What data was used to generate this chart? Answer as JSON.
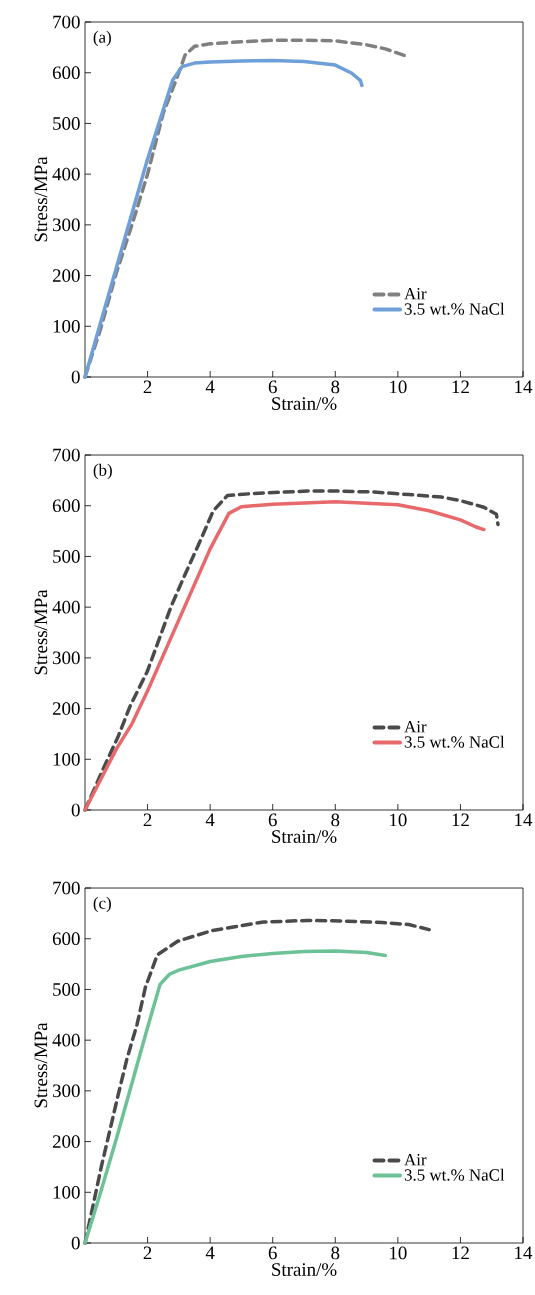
{
  "chart_data": [
    {
      "type": "line",
      "title": "(a)",
      "xlabel": "Strain/%",
      "ylabel": "Stress/MPa",
      "xlim": [
        0,
        14
      ],
      "ylim": [
        0,
        700
      ],
      "xticks": [
        2,
        4,
        6,
        8,
        10,
        12,
        14
      ],
      "yticks": [
        0,
        100,
        200,
        300,
        400,
        500,
        600,
        700
      ],
      "legend": "bottom right",
      "series": [
        {
          "name": "Air",
          "color": "#808080",
          "line_style": "dashed",
          "x": [
            0,
            0.5,
            1,
            1.5,
            2,
            2.5,
            3,
            3.2,
            3.5,
            4,
            5,
            6,
            7,
            8,
            9,
            9.6,
            10.3
          ],
          "values": [
            0,
            95,
            205,
            300,
            400,
            520,
            600,
            635,
            652,
            657,
            661,
            664,
            664,
            663,
            655,
            647,
            632
          ]
        },
        {
          "name": "3.5 wt.% NaCl",
          "color": "#6f9fd8",
          "line_style": "solid",
          "x": [
            0,
            1,
            2,
            2.8,
            3.1,
            3.5,
            4,
            5,
            6,
            7,
            8,
            8.5,
            8.8,
            8.85
          ],
          "values": [
            0,
            215,
            430,
            585,
            612,
            619,
            621,
            623,
            624,
            622,
            615,
            600,
            585,
            575
          ]
        }
      ]
    },
    {
      "type": "line",
      "title": "(b)",
      "xlabel": "Strain/%",
      "ylabel": "Stress/MPa",
      "xlim": [
        0,
        14
      ],
      "ylim": [
        0,
        700
      ],
      "xticks": [
        2,
        4,
        6,
        8,
        10,
        12,
        14
      ],
      "yticks": [
        0,
        100,
        200,
        300,
        400,
        500,
        600,
        700
      ],
      "legend": "bottom right",
      "series": [
        {
          "name": "Air",
          "color": "#4a4a4a",
          "line_style": "dashed",
          "x": [
            0,
            0.58,
            1.06,
            1.45,
            1.99,
            2.37,
            2.75,
            3.18,
            3.62,
            4.1,
            4.55,
            5.35,
            7.1,
            8,
            9.25,
            10.35,
            11.4,
            12,
            12.75,
            13.15,
            13.2
          ],
          "values": [
            0,
            81,
            145,
            206,
            273,
            337,
            401,
            462,
            522,
            590,
            620,
            624,
            629,
            629,
            627,
            622,
            617,
            610,
            597,
            583,
            563
          ]
        },
        {
          "name": "3.5 wt.% NaCl",
          "color": "#e8696b",
          "line_style": "solid",
          "x": [
            0,
            1,
            1.5,
            2,
            3,
            4,
            4.6,
            5,
            6,
            8,
            10,
            11,
            12,
            12.5,
            12.75
          ],
          "values": [
            0,
            120,
            170,
            235,
            375,
            515,
            585,
            598,
            603,
            608,
            602,
            590,
            572,
            558,
            553
          ]
        }
      ]
    },
    {
      "type": "line",
      "title": "(c)",
      "xlabel": "Strain/%",
      "ylabel": "Stress/MPa",
      "xlim": [
        0,
        14
      ],
      "ylim": [
        0,
        700
      ],
      "xticks": [
        2,
        4,
        6,
        8,
        10,
        12,
        14
      ],
      "yticks": [
        0,
        100,
        200,
        300,
        400,
        500,
        600,
        700
      ],
      "legend": "bottom right",
      "series": [
        {
          "name": "Air",
          "color": "#4a4a4a",
          "line_style": "dashed",
          "x": [
            0,
            0.52,
            0.79,
            1.06,
            1.34,
            1.66,
            1.93,
            2.31,
            2.96,
            4.05,
            5.7,
            7.1,
            8.2,
            9.5,
            10.35,
            11.0
          ],
          "values": [
            0,
            150,
            221,
            292,
            363,
            430,
            504,
            568,
            595,
            616,
            633,
            636,
            635,
            632,
            628,
            618
          ]
        },
        {
          "name": "3.5 wt.% NaCl",
          "color": "#6cc196",
          "line_style": "solid",
          "x": [
            0,
            0.5,
            1,
            1.5,
            2,
            2.4,
            2.7,
            3,
            4,
            5,
            6,
            7,
            8,
            9,
            9.6
          ],
          "values": [
            0,
            100,
            205,
            315,
            425,
            510,
            530,
            538,
            555,
            565,
            571,
            575,
            576,
            573,
            567
          ]
        }
      ]
    }
  ]
}
